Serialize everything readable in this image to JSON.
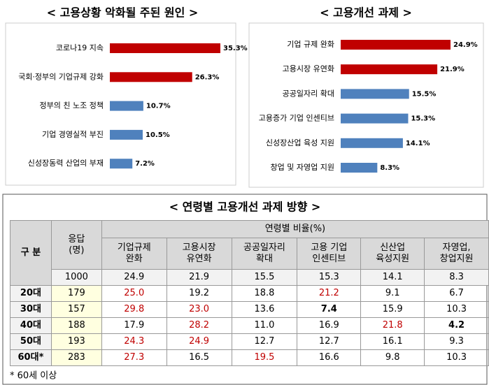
{
  "chart_data": [
    {
      "type": "hbar",
      "title": "< 고용상황 악화될 주된 원인 >",
      "categories": [
        "코로나19 지속",
        "국회·정부의 기업규제 강화",
        "정부의 친 노조 정책",
        "기업 경영실적 부진",
        "신성장동력 산업의 부재"
      ],
      "values": [
        35.3,
        26.3,
        10.7,
        10.5,
        7.2
      ],
      "value_labels": [
        "35.3%",
        "26.3%",
        "10.7%",
        "10.5%",
        "7.2%"
      ],
      "colors": [
        "#c00000",
        "#c00000",
        "#4f81bd",
        "#4f81bd",
        "#4f81bd"
      ]
    },
    {
      "type": "hbar",
      "title": "< 고용개선 과제 >",
      "categories": [
        "기업 규제 완화",
        "고용시장 유연화",
        "공공일자리 확대",
        "고용증가 기업 인센티브",
        "신성장산업 육성 지원",
        "창업 및 자영업 지원"
      ],
      "values": [
        24.9,
        21.9,
        15.5,
        15.3,
        14.1,
        8.3
      ],
      "value_labels": [
        "24.9%",
        "21.9%",
        "15.5%",
        "15.3%",
        "14.1%",
        "8.3%"
      ],
      "colors": [
        "#c00000",
        "#c00000",
        "#4f81bd",
        "#4f81bd",
        "#4f81bd",
        "#4f81bd"
      ]
    }
  ],
  "table": {
    "title": "< 연령별 고용개선 과제 방향 >",
    "row_header": "구 분",
    "count_header": "응답\n(명)",
    "group_header": "연령별 비율(%)",
    "columns": [
      "기업규제\n완화",
      "고용시장\n유연화",
      "공공일자리\n확대",
      "고용 기업\n인센티브",
      "신산업\n육성지원",
      "자영업,\n창업지원"
    ],
    "total": {
      "count": "1000",
      "cells": [
        "24.9",
        "21.9",
        "15.5",
        "15.3",
        "14.1",
        "8.3"
      ]
    },
    "rows": [
      {
        "label": "20대",
        "count": "179",
        "cells": [
          {
            "text": "25.0",
            "color": "#c00000"
          },
          {
            "text": "19.2"
          },
          {
            "text": "18.8"
          },
          {
            "text": "21.2",
            "color": "#c00000"
          },
          {
            "text": "9.1"
          },
          {
            "text": "6.7"
          }
        ]
      },
      {
        "label": "30대",
        "count": "157",
        "cells": [
          {
            "text": "29.8",
            "color": "#c00000"
          },
          {
            "text": "23.0",
            "color": "#c00000"
          },
          {
            "text": "13.6"
          },
          {
            "text": "7.4",
            "bold": true
          },
          {
            "text": "15.9"
          },
          {
            "text": "10.3"
          }
        ]
      },
      {
        "label": "40대",
        "count": "188",
        "cells": [
          {
            "text": "17.9"
          },
          {
            "text": "28.2",
            "color": "#c00000"
          },
          {
            "text": "11.0"
          },
          {
            "text": "16.9"
          },
          {
            "text": "21.8",
            "color": "#c00000"
          },
          {
            "text": "4.2",
            "bold": true
          }
        ]
      },
      {
        "label": "50대",
        "count": "193",
        "cells": [
          {
            "text": "24.3",
            "color": "#c00000"
          },
          {
            "text": "24.9",
            "color": "#c00000"
          },
          {
            "text": "12.7"
          },
          {
            "text": "12.7"
          },
          {
            "text": "16.1"
          },
          {
            "text": "9.3"
          }
        ]
      },
      {
        "label": "60대*",
        "count": "283",
        "cells": [
          {
            "text": "27.3",
            "color": "#c00000"
          },
          {
            "text": "16.5"
          },
          {
            "text": "19.5",
            "color": "#c00000"
          },
          {
            "text": "16.6"
          },
          {
            "text": "9.8"
          },
          {
            "text": "10.3"
          }
        ]
      }
    ],
    "note": "* 60세 이상"
  }
}
